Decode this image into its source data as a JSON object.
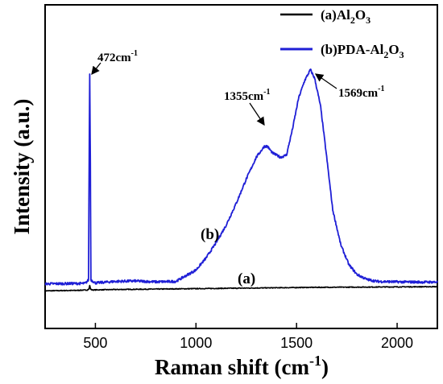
{
  "chart_data": {
    "type": "line",
    "xlabel": "Raman shift (cm-1)",
    "xlabel_main": "Raman shift (cm",
    "xlabel_sup": "-1",
    "xlabel_end": ")",
    "ylabel": "Intensity (a.u.)",
    "xlim": [
      250,
      2200
    ],
    "ylim": [
      0,
      100
    ],
    "y_tick_labels_shown": false,
    "x_ticks": [
      500,
      1000,
      1500,
      2000
    ],
    "x_tick_labels": [
      "500",
      "1000",
      "1500",
      "2000"
    ],
    "grid": false,
    "legend_position": "top-right",
    "legend": [
      {
        "main": "(a)Al",
        "sub1": "2",
        "mid": "O",
        "sub2": "3",
        "color": "#000000"
      },
      {
        "main": "(b)PDA-Al",
        "sub1": "2",
        "mid": "O",
        "sub2": "3",
        "color": "#1f1fd6"
      }
    ],
    "series": [
      {
        "name": "(a)Al2O3",
        "color": "#000000",
        "x": [
          250,
          400,
          460,
          468,
          472,
          476,
          484,
          600,
          800,
          1000,
          1200,
          1400,
          1600,
          1800,
          2000,
          2200
        ],
        "y": [
          1.0,
          1.2,
          1.4,
          1.8,
          3.5,
          1.8,
          1.4,
          1.6,
          1.8,
          2.0,
          2.2,
          2.4,
          2.6,
          2.7,
          2.8,
          2.9
        ]
      },
      {
        "name": "(b)PDA-Al2O3",
        "color": "#1f1fd6",
        "x": [
          250,
          350,
          450,
          466,
          469,
          472,
          475,
          478,
          500,
          600,
          700,
          800,
          900,
          1000,
          1050,
          1100,
          1150,
          1200,
          1250,
          1300,
          1340,
          1355,
          1380,
          1420,
          1450,
          1480,
          1510,
          1540,
          1569,
          1590,
          1620,
          1650,
          1680,
          1720,
          1760,
          1800,
          1850,
          1900,
          2000,
          2100,
          2200
        ],
        "y": [
          4.2,
          4.3,
          4.4,
          6,
          60,
          100,
          60,
          6,
          4.6,
          5.3,
          5.5,
          5.1,
          5.3,
          10.5,
          16,
          23,
          31,
          41,
          52,
          62,
          67,
          67,
          64,
          62,
          63,
          75,
          89,
          97,
          102,
          98,
          85,
          62,
          38,
          22,
          13,
          8.5,
          6.2,
          5.3,
          5.1,
          5.0,
          5.0
        ]
      }
    ],
    "annotations": [
      {
        "text": "472cm",
        "sup": "-1",
        "x": 472,
        "y": 100
      },
      {
        "text": "1355cm",
        "sup": "-1",
        "x": 1355,
        "y": 67
      },
      {
        "text": "1569cm",
        "sup": "-1",
        "x": 1569,
        "y": 102
      }
    ],
    "curve_labels": [
      "(b)",
      "(a)"
    ]
  }
}
